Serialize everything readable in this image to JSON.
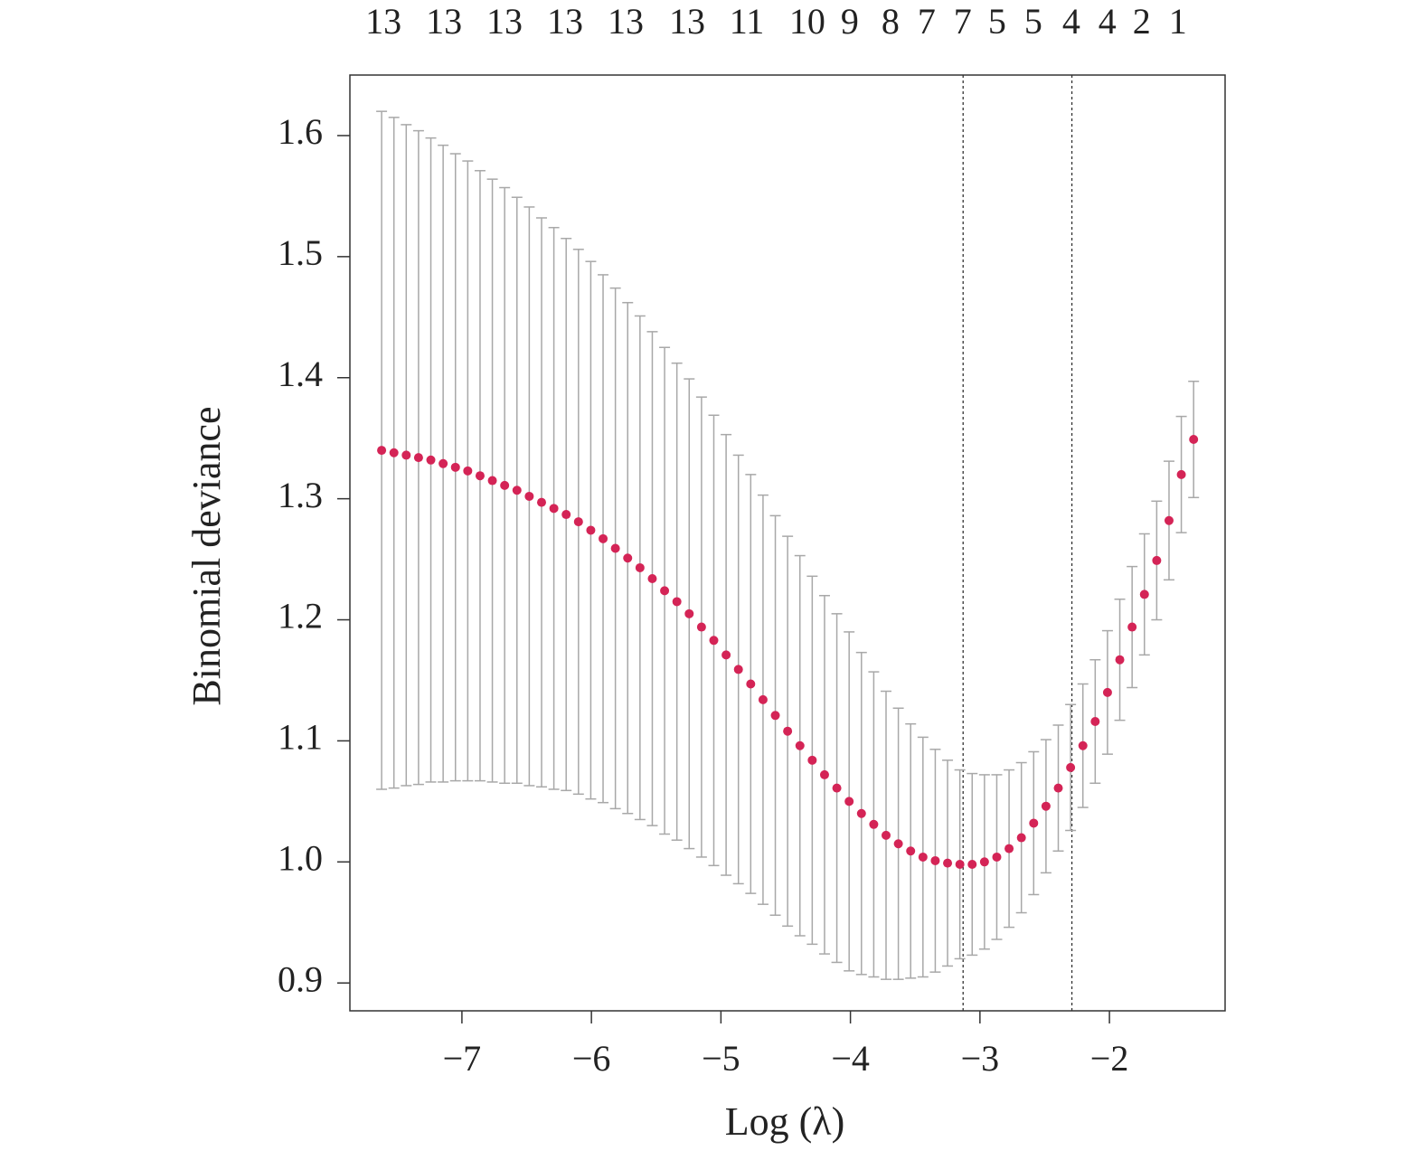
{
  "chart_data": {
    "type": "errorbar",
    "xlabel": "Log (λ)",
    "ylabel": "Binomial deviance",
    "x": [
      -7.62,
      -7.525,
      -7.43,
      -7.335,
      -7.24,
      -7.145,
      -7.05,
      -6.955,
      -6.86,
      -6.765,
      -6.67,
      -6.575,
      -6.48,
      -6.385,
      -6.29,
      -6.195,
      -6.1,
      -6.005,
      -5.91,
      -5.815,
      -5.72,
      -5.625,
      -5.53,
      -5.435,
      -5.34,
      -5.245,
      -5.15,
      -5.055,
      -4.96,
      -4.865,
      -4.77,
      -4.675,
      -4.58,
      -4.485,
      -4.39,
      -4.295,
      -4.2,
      -4.105,
      -4.01,
      -3.915,
      -3.82,
      -3.725,
      -3.63,
      -3.535,
      -3.44,
      -3.345,
      -3.25,
      -3.155,
      -3.06,
      -2.965,
      -2.87,
      -2.775,
      -2.68,
      -2.585,
      -2.49,
      -2.395,
      -2.3,
      -2.205,
      -2.11,
      -2.015,
      -1.92,
      -1.825,
      -1.73,
      -1.635,
      -1.54,
      -1.445,
      -1.35
    ],
    "values": [
      1.34,
      1.338,
      1.336,
      1.334,
      1.332,
      1.329,
      1.326,
      1.323,
      1.319,
      1.315,
      1.311,
      1.307,
      1.302,
      1.297,
      1.292,
      1.287,
      1.281,
      1.274,
      1.267,
      1.259,
      1.251,
      1.243,
      1.234,
      1.224,
      1.215,
      1.205,
      1.194,
      1.183,
      1.171,
      1.159,
      1.147,
      1.134,
      1.121,
      1.108,
      1.096,
      1.084,
      1.072,
      1.061,
      1.05,
      1.04,
      1.031,
      1.022,
      1.015,
      1.009,
      1.004,
      1.001,
      0.999,
      0.998,
      0.998,
      1.0,
      1.004,
      1.011,
      1.02,
      1.032,
      1.046,
      1.061,
      1.078,
      1.096,
      1.116,
      1.14,
      1.167,
      1.194,
      1.221,
      1.249,
      1.282,
      1.32,
      1.349
    ],
    "errors": [
      0.28,
      0.277,
      0.273,
      0.27,
      0.266,
      0.263,
      0.259,
      0.256,
      0.252,
      0.249,
      0.246,
      0.242,
      0.239,
      0.235,
      0.232,
      0.228,
      0.225,
      0.222,
      0.218,
      0.215,
      0.211,
      0.208,
      0.204,
      0.201,
      0.197,
      0.194,
      0.19,
      0.186,
      0.182,
      0.177,
      0.173,
      0.169,
      0.165,
      0.161,
      0.157,
      0.152,
      0.148,
      0.144,
      0.14,
      0.133,
      0.126,
      0.119,
      0.112,
      0.105,
      0.099,
      0.092,
      0.085,
      0.078,
      0.075,
      0.072,
      0.068,
      0.065,
      0.062,
      0.059,
      0.055,
      0.052,
      0.052,
      0.051,
      0.051,
      0.051,
      0.05,
      0.05,
      0.05,
      0.049,
      0.049,
      0.048,
      0.048
    ],
    "color": "#d42456",
    "error_color": "#a8a8a8",
    "vlines": [
      -3.13,
      -2.29
    ],
    "xlim": [
      -7.865,
      -1.107
    ],
    "ylim": [
      0.877,
      1.65
    ],
    "xticks": [
      {
        "value": -7,
        "label": "−7"
      },
      {
        "value": -6,
        "label": "−6"
      },
      {
        "value": -5,
        "label": "−5"
      },
      {
        "value": -4,
        "label": "−4"
      },
      {
        "value": -3,
        "label": "−3"
      },
      {
        "value": -2,
        "label": "−2"
      }
    ],
    "yticks": [
      {
        "value": 0.9,
        "label": "0.9"
      },
      {
        "value": 1.0,
        "label": "1.0"
      },
      1.1,
      1.2,
      1.3,
      1.4,
      1.5,
      1.6
    ],
    "top_ticks": [
      {
        "value": -7.606,
        "label": "13"
      },
      {
        "value": -7.138,
        "label": "13"
      },
      {
        "value": -6.671,
        "label": "13"
      },
      {
        "value": -6.203,
        "label": "13"
      },
      {
        "value": -5.736,
        "label": "13"
      },
      {
        "value": -5.261,
        "label": "13"
      },
      {
        "value": -4.8,
        "label": "11"
      },
      {
        "value": -4.333,
        "label": "10"
      },
      {
        "value": -4.005,
        "label": "9"
      },
      {
        "value": -3.691,
        "label": "8"
      },
      {
        "value": -3.412,
        "label": "7"
      },
      {
        "value": -3.133,
        "label": "7"
      },
      {
        "value": -2.867,
        "label": "5"
      },
      {
        "value": -2.588,
        "label": "5"
      },
      {
        "value": -2.295,
        "label": "4"
      },
      {
        "value": -2.016,
        "label": "4"
      },
      {
        "value": -1.751,
        "label": "2"
      },
      {
        "value": -1.472,
        "label": "1"
      }
    ]
  }
}
